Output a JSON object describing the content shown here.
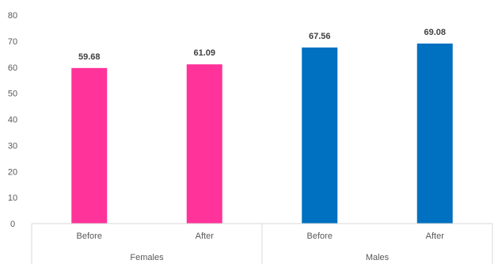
{
  "chart_data": {
    "type": "bar",
    "groups": [
      {
        "name": "Females",
        "color": "#FF3399",
        "categories": [
          "Before",
          "After"
        ],
        "values": [
          59.68,
          61.09
        ],
        "labels": [
          "59.68",
          "61.09"
        ]
      },
      {
        "name": "Males",
        "color": "#0070C0",
        "categories": [
          "Before",
          "After"
        ],
        "values": [
          67.56,
          69.08
        ],
        "labels": [
          "67.56",
          "69.08"
        ]
      }
    ],
    "title": "",
    "xlabel": "",
    "ylabel": "",
    "ylim": [
      0,
      80
    ],
    "yticks": [
      "0",
      "10",
      "20",
      "30",
      "40",
      "50",
      "60",
      "70",
      "80"
    ],
    "grid": false,
    "legend": "none"
  }
}
